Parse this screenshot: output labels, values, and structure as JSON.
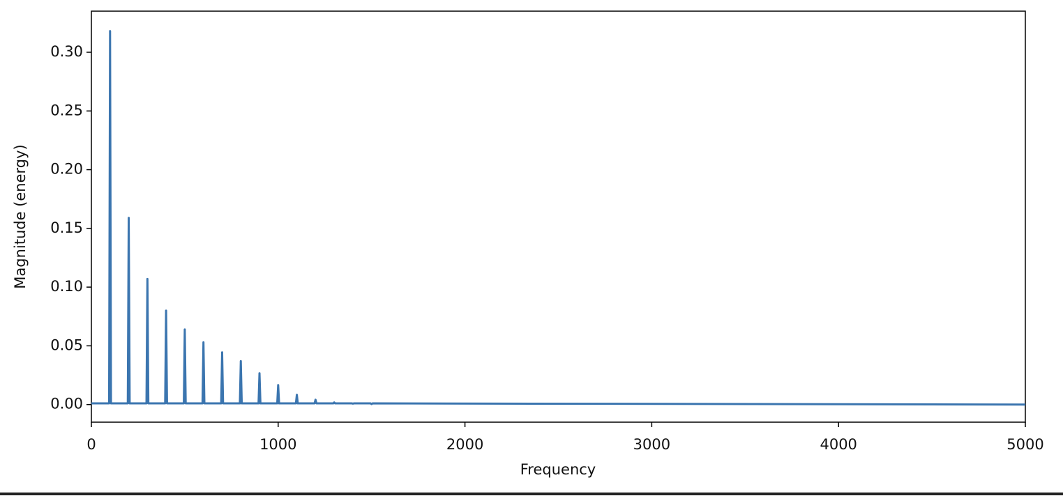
{
  "chart_data": {
    "type": "line",
    "xlabel": "Frequency",
    "ylabel": "Magnitude (energy)",
    "x": [
      0,
      95,
      100,
      105,
      195,
      200,
      205,
      295,
      300,
      305,
      395,
      400,
      405,
      495,
      500,
      505,
      595,
      600,
      605,
      695,
      700,
      705,
      795,
      800,
      805,
      895,
      900,
      905,
      995,
      1000,
      1005,
      1095,
      1100,
      1105,
      1195,
      1200,
      1205,
      1295,
      1300,
      1305,
      1395,
      1400,
      1405,
      1495,
      1500,
      1505,
      5000
    ],
    "series": [
      {
        "name": "Magnitude",
        "color": "#3b75af",
        "values": [
          0.001,
          0.001,
          0.318,
          0.001,
          0.001,
          0.159,
          0.001,
          0.001,
          0.107,
          0.001,
          0.001,
          0.08,
          0.001,
          0.001,
          0.064,
          0.001,
          0.001,
          0.053,
          0.001,
          0.001,
          0.0445,
          0.001,
          0.001,
          0.037,
          0.001,
          0.001,
          0.0267,
          0.001,
          0.001,
          0.0166,
          0.001,
          0.001,
          0.0083,
          0.001,
          0.001,
          0.0041,
          0.001,
          0.001,
          0.0018,
          0.001,
          0.001,
          0.0008,
          0.001,
          0.001,
          0.0004,
          0.001,
          0
        ]
      }
    ],
    "xlim": [
      0,
      5000
    ],
    "xticks": [
      0,
      1000,
      2000,
      3000,
      4000,
      5000
    ],
    "ylim": [
      -0.015,
      0.335
    ],
    "yticks": [
      {
        "value": 0,
        "label": "0.00"
      },
      {
        "value": 0.05,
        "label": "0.05"
      },
      {
        "value": 0.1,
        "label": "0.10"
      },
      {
        "value": 0.15,
        "label": "0.15"
      },
      {
        "value": 0.2,
        "label": "0.20"
      },
      {
        "value": 0.25,
        "label": "0.25"
      },
      {
        "value": 0.3,
        "label": "0.30"
      }
    ],
    "grid": false
  }
}
